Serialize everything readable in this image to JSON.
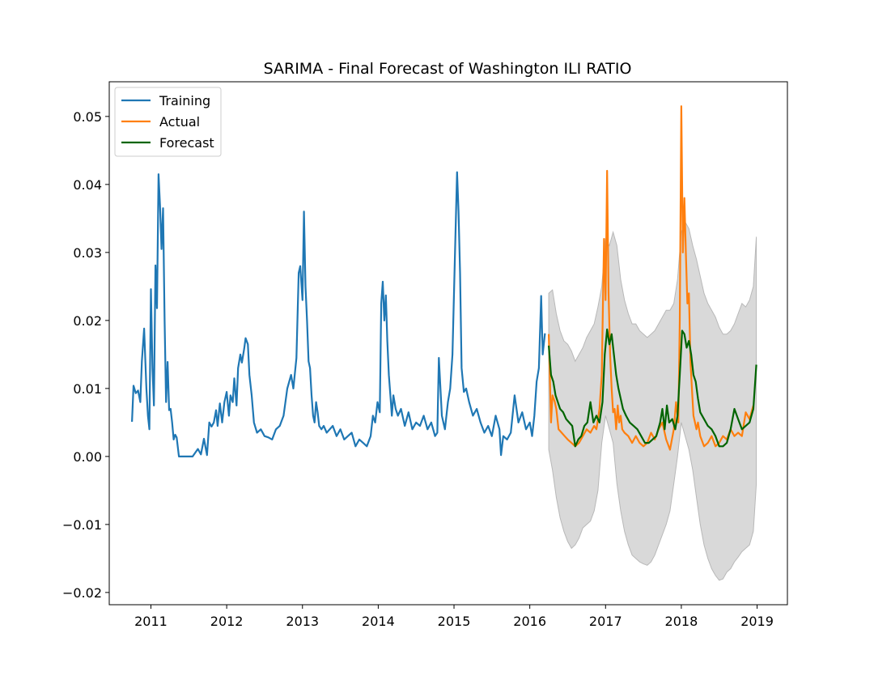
{
  "chart_data": {
    "type": "line",
    "title": "SARIMA - Final Forecast of Washington ILI RATIO",
    "xlabel": "",
    "ylabel": "",
    "xlim": [
      2010.45,
      2019.4
    ],
    "ylim": [
      -0.0218,
      0.0551
    ],
    "x_ticks": [
      2011,
      2012,
      2013,
      2014,
      2015,
      2016,
      2017,
      2018,
      2019
    ],
    "x_tick_labels": [
      "2011",
      "2012",
      "2013",
      "2014",
      "2015",
      "2016",
      "2017",
      "2018",
      "2019"
    ],
    "y_ticks": [
      -0.02,
      -0.01,
      0.0,
      0.01,
      0.02,
      0.03,
      0.04,
      0.05
    ],
    "y_tick_labels": [
      "−0.02",
      "−0.01",
      "0.00",
      "0.01",
      "0.02",
      "0.03",
      "0.04",
      "0.05"
    ],
    "legend_position": "upper-left",
    "grid": false,
    "series": [
      {
        "name": "Training",
        "color": "#1f77b4",
        "x": [
          2010.75,
          2010.77,
          2010.8,
          2010.83,
          2010.86,
          2010.88,
          2010.91,
          2010.94,
          2010.96,
          2010.98,
          2011.0,
          2011.02,
          2011.04,
          2011.06,
          2011.08,
          2011.1,
          2011.12,
          2011.14,
          2011.16,
          2011.18,
          2011.2,
          2011.22,
          2011.24,
          2011.26,
          2011.28,
          2011.3,
          2011.32,
          2011.34,
          2011.37,
          2011.4,
          2011.45,
          2011.55,
          2011.62,
          2011.66,
          2011.7,
          2011.74,
          2011.77,
          2011.8,
          2011.83,
          2011.86,
          2011.88,
          2011.91,
          2011.94,
          2011.97,
          2012.0,
          2012.03,
          2012.05,
          2012.08,
          2012.1,
          2012.13,
          2012.15,
          2012.18,
          2012.2,
          2012.23,
          2012.25,
          2012.28,
          2012.3,
          2012.33,
          2012.36,
          2012.4,
          2012.45,
          2012.5,
          2012.55,
          2012.6,
          2012.65,
          2012.7,
          2012.75,
          2012.8,
          2012.85,
          2012.88,
          2012.92,
          2012.95,
          2012.97,
          2013.0,
          2013.02,
          2013.04,
          2013.06,
          2013.08,
          2013.1,
          2013.12,
          2013.14,
          2013.16,
          2013.18,
          2013.2,
          2013.22,
          2013.25,
          2013.28,
          2013.32,
          2013.36,
          2013.4,
          2013.45,
          2013.5,
          2013.55,
          2013.6,
          2013.65,
          2013.7,
          2013.75,
          2013.8,
          2013.85,
          2013.9,
          2013.93,
          2013.96,
          2013.99,
          2014.02,
          2014.04,
          2014.06,
          2014.08,
          2014.1,
          2014.12,
          2014.14,
          2014.16,
          2014.18,
          2014.2,
          2014.23,
          2014.26,
          2014.3,
          2014.35,
          2014.4,
          2014.45,
          2014.5,
          2014.55,
          2014.6,
          2014.65,
          2014.7,
          2014.75,
          2014.78,
          2014.8,
          2014.84,
          2014.88,
          2014.92,
          2014.95,
          2014.98,
          2015.0,
          2015.02,
          2015.04,
          2015.06,
          2015.08,
          2015.1,
          2015.13,
          2015.16,
          2015.2,
          2015.25,
          2015.3,
          2015.35,
          2015.4,
          2015.45,
          2015.5,
          2015.55,
          2015.6,
          2015.62,
          2015.65,
          2015.7,
          2015.75,
          2015.8,
          2015.85,
          2015.9,
          2015.95,
          2016.0,
          2016.03,
          2016.06,
          2016.09,
          2016.12,
          2016.15,
          2016.17,
          2016.2
        ],
        "values": [
          0.0051,
          0.0104,
          0.0093,
          0.0097,
          0.008,
          0.014,
          0.0188,
          0.01,
          0.006,
          0.004,
          0.0246,
          0.013,
          0.0075,
          0.0281,
          0.0218,
          0.0415,
          0.037,
          0.0305,
          0.0365,
          0.02,
          0.008,
          0.0139,
          0.0068,
          0.007,
          0.005,
          0.0025,
          0.0032,
          0.0028,
          0.0,
          0.0,
          0.0,
          0.0,
          0.0011,
          0.0003,
          0.0026,
          0.0002,
          0.005,
          0.0044,
          0.005,
          0.0068,
          0.0045,
          0.0078,
          0.005,
          0.008,
          0.0095,
          0.006,
          0.009,
          0.008,
          0.0115,
          0.0075,
          0.013,
          0.015,
          0.0138,
          0.0158,
          0.0174,
          0.0165,
          0.012,
          0.009,
          0.005,
          0.0035,
          0.004,
          0.003,
          0.0028,
          0.0025,
          0.004,
          0.0045,
          0.006,
          0.01,
          0.012,
          0.01,
          0.0145,
          0.027,
          0.028,
          0.023,
          0.036,
          0.025,
          0.02,
          0.014,
          0.013,
          0.009,
          0.006,
          0.005,
          0.008,
          0.0065,
          0.0045,
          0.004,
          0.0045,
          0.0035,
          0.004,
          0.0045,
          0.003,
          0.004,
          0.0025,
          0.003,
          0.0035,
          0.0015,
          0.0025,
          0.002,
          0.0015,
          0.003,
          0.006,
          0.005,
          0.008,
          0.0065,
          0.0225,
          0.0257,
          0.02,
          0.0237,
          0.017,
          0.012,
          0.009,
          0.006,
          0.009,
          0.007,
          0.006,
          0.007,
          0.0045,
          0.0065,
          0.004,
          0.005,
          0.0045,
          0.006,
          0.004,
          0.005,
          0.003,
          0.0035,
          0.0145,
          0.006,
          0.004,
          0.008,
          0.01,
          0.015,
          0.024,
          0.033,
          0.0418,
          0.036,
          0.027,
          0.013,
          0.0095,
          0.01,
          0.008,
          0.006,
          0.007,
          0.005,
          0.0035,
          0.0045,
          0.003,
          0.006,
          0.004,
          0.0002,
          0.003,
          0.0025,
          0.0035,
          0.009,
          0.005,
          0.0065,
          0.004,
          0.005,
          0.003,
          0.006,
          0.011,
          0.013,
          0.0236,
          0.015,
          0.0181
        ]
      },
      {
        "name": "Actual",
        "color": "#ff7f0e",
        "x": [
          2016.25,
          2016.28,
          2016.3,
          2016.33,
          2016.35,
          2016.38,
          2016.42,
          2016.46,
          2016.5,
          2016.55,
          2016.6,
          2016.65,
          2016.7,
          2016.75,
          2016.8,
          2016.85,
          2016.88,
          2016.92,
          2016.95,
          2016.98,
          2017.0,
          2017.02,
          2017.04,
          2017.06,
          2017.08,
          2017.1,
          2017.12,
          2017.14,
          2017.16,
          2017.18,
          2017.2,
          2017.22,
          2017.25,
          2017.3,
          2017.35,
          2017.4,
          2017.45,
          2017.5,
          2017.55,
          2017.6,
          2017.65,
          2017.7,
          2017.75,
          2017.8,
          2017.85,
          2017.9,
          2017.93,
          2017.96,
          2017.98,
          2018.0,
          2018.02,
          2018.04,
          2018.06,
          2018.08,
          2018.1,
          2018.12,
          2018.14,
          2018.16,
          2018.18,
          2018.2,
          2018.22,
          2018.25,
          2018.3,
          2018.35,
          2018.4,
          2018.45,
          2018.5,
          2018.55,
          2018.6,
          2018.65,
          2018.7,
          2018.75,
          2018.8,
          2018.85,
          2018.9,
          2018.95
        ],
        "values": [
          0.018,
          0.005,
          0.009,
          0.008,
          0.007,
          0.004,
          0.0035,
          0.003,
          0.0025,
          0.002,
          0.0015,
          0.002,
          0.003,
          0.004,
          0.0035,
          0.0045,
          0.004,
          0.007,
          0.012,
          0.032,
          0.023,
          0.042,
          0.024,
          0.015,
          0.01,
          0.0065,
          0.007,
          0.004,
          0.0075,
          0.005,
          0.006,
          0.004,
          0.0035,
          0.003,
          0.002,
          0.003,
          0.002,
          0.0015,
          0.002,
          0.0035,
          0.0025,
          0.004,
          0.005,
          0.0025,
          0.001,
          0.004,
          0.008,
          0.005,
          0.02,
          0.0515,
          0.03,
          0.038,
          0.03,
          0.0225,
          0.024,
          0.014,
          0.01,
          0.006,
          0.005,
          0.004,
          0.005,
          0.003,
          0.0015,
          0.002,
          0.003,
          0.0015,
          0.002,
          0.003,
          0.0025,
          0.004,
          0.003,
          0.0035,
          0.003,
          0.0065,
          0.0055,
          0.0075
        ]
      },
      {
        "name": "Forecast",
        "color": "#006400",
        "x": [
          2016.25,
          2016.28,
          2016.31,
          2016.34,
          2016.37,
          2016.4,
          2016.44,
          2016.48,
          2016.52,
          2016.56,
          2016.6,
          2016.64,
          2016.68,
          2016.72,
          2016.76,
          2016.8,
          2016.84,
          2016.88,
          2016.92,
          2016.96,
          2016.99,
          2017.02,
          2017.05,
          2017.08,
          2017.11,
          2017.14,
          2017.17,
          2017.2,
          2017.23,
          2017.27,
          2017.32,
          2017.37,
          2017.42,
          2017.47,
          2017.52,
          2017.57,
          2017.62,
          2017.67,
          2017.72,
          2017.75,
          2017.78,
          2017.81,
          2017.84,
          2017.88,
          2017.92,
          2017.95,
          2017.98,
          2018.01,
          2018.04,
          2018.07,
          2018.1,
          2018.13,
          2018.16,
          2018.19,
          2018.22,
          2018.25,
          2018.3,
          2018.35,
          2018.4,
          2018.45,
          2018.5,
          2018.55,
          2018.6,
          2018.65,
          2018.7,
          2018.75,
          2018.8,
          2018.85,
          2018.9,
          2018.95,
          2018.99
        ],
        "values": [
          0.0163,
          0.012,
          0.011,
          0.009,
          0.008,
          0.007,
          0.0065,
          0.0055,
          0.005,
          0.0045,
          0.0015,
          0.0025,
          0.003,
          0.0045,
          0.005,
          0.008,
          0.005,
          0.006,
          0.005,
          0.008,
          0.015,
          0.0187,
          0.0165,
          0.018,
          0.015,
          0.012,
          0.01,
          0.0085,
          0.007,
          0.006,
          0.005,
          0.0045,
          0.004,
          0.003,
          0.002,
          0.002,
          0.0025,
          0.003,
          0.005,
          0.007,
          0.004,
          0.0075,
          0.005,
          0.0055,
          0.004,
          0.006,
          0.012,
          0.0185,
          0.018,
          0.016,
          0.017,
          0.015,
          0.012,
          0.011,
          0.0085,
          0.0065,
          0.0055,
          0.0045,
          0.004,
          0.003,
          0.0015,
          0.0015,
          0.002,
          0.004,
          0.007,
          0.0055,
          0.004,
          0.0045,
          0.005,
          0.007,
          0.0135
        ]
      }
    ],
    "confidence_band": {
      "color": "#d9d9d9",
      "edge_color": "#b8b8b8",
      "x": [
        2016.25,
        2016.3,
        2016.35,
        2016.4,
        2016.45,
        2016.5,
        2016.55,
        2016.6,
        2016.65,
        2016.7,
        2016.75,
        2016.8,
        2016.85,
        2016.9,
        2016.95,
        2017.0,
        2017.05,
        2017.1,
        2017.15,
        2017.2,
        2017.25,
        2017.3,
        2017.35,
        2017.4,
        2017.45,
        2017.5,
        2017.55,
        2017.6,
        2017.65,
        2017.7,
        2017.75,
        2017.8,
        2017.85,
        2017.9,
        2017.95,
        2018.0,
        2018.05,
        2018.1,
        2018.15,
        2018.2,
        2018.25,
        2018.3,
        2018.35,
        2018.4,
        2018.45,
        2018.5,
        2018.55,
        2018.6,
        2018.65,
        2018.7,
        2018.75,
        2018.8,
        2018.85,
        2018.9,
        2018.95,
        2018.99
      ],
      "upper": [
        0.024,
        0.0245,
        0.021,
        0.0185,
        0.017,
        0.0165,
        0.0155,
        0.014,
        0.015,
        0.016,
        0.0175,
        0.0185,
        0.0195,
        0.022,
        0.025,
        0.032,
        0.031,
        0.033,
        0.031,
        0.026,
        0.023,
        0.021,
        0.0195,
        0.0195,
        0.0185,
        0.018,
        0.0175,
        0.018,
        0.0185,
        0.0195,
        0.0205,
        0.0215,
        0.0215,
        0.0225,
        0.026,
        0.033,
        0.0345,
        0.0335,
        0.031,
        0.029,
        0.0265,
        0.024,
        0.0225,
        0.0215,
        0.0205,
        0.019,
        0.018,
        0.018,
        0.0185,
        0.0195,
        0.021,
        0.0225,
        0.022,
        0.023,
        0.025,
        0.0323
      ],
      "lower": [
        0.001,
        -0.002,
        -0.006,
        -0.009,
        -0.011,
        -0.0125,
        -0.0135,
        -0.013,
        -0.012,
        -0.0105,
        -0.01,
        -0.0095,
        -0.008,
        -0.005,
        0.002,
        0.006,
        0.004,
        0.002,
        -0.004,
        -0.008,
        -0.011,
        -0.013,
        -0.0145,
        -0.015,
        -0.0155,
        -0.0158,
        -0.016,
        -0.0155,
        -0.0145,
        -0.013,
        -0.0115,
        -0.01,
        -0.008,
        -0.004,
        0.0,
        0.005,
        0.003,
        0.001,
        -0.002,
        -0.006,
        -0.01,
        -0.013,
        -0.015,
        -0.0165,
        -0.0175,
        -0.0182,
        -0.018,
        -0.017,
        -0.0165,
        -0.0155,
        -0.0148,
        -0.014,
        -0.0135,
        -0.013,
        -0.011,
        -0.004
      ]
    }
  }
}
